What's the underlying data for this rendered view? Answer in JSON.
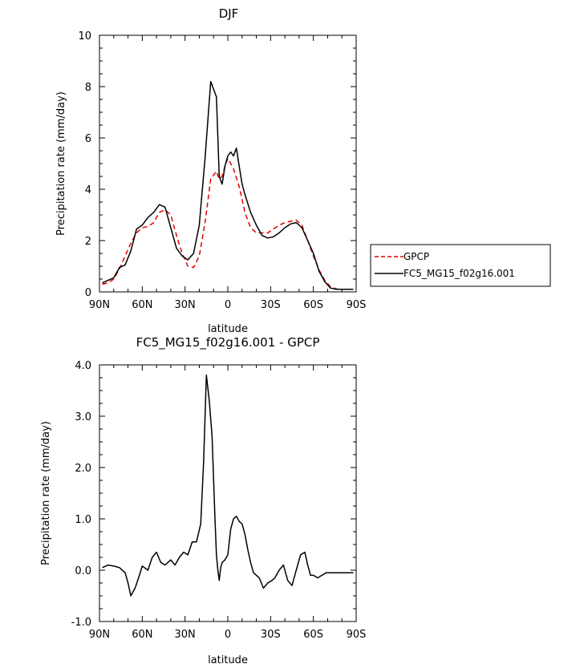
{
  "chart_data": [
    {
      "type": "line",
      "title": "DJF",
      "xlabel": "latitude",
      "ylabel": "Precipitation rate (mm/day)",
      "xlim": [
        90,
        -90
      ],
      "ylim": [
        0,
        10
      ],
      "x_ticks": [
        "90N",
        "60N",
        "30N",
        "0",
        "30S",
        "60S",
        "90S"
      ],
      "x_tick_values": [
        90,
        60,
        30,
        0,
        -30,
        -60,
        -90
      ],
      "y_ticks": [
        "0",
        "2",
        "4",
        "6",
        "8",
        "10"
      ],
      "y_tick_values": [
        0,
        2,
        4,
        6,
        8,
        10
      ],
      "legend": "right-outside",
      "series": [
        {
          "name": "GPCP",
          "style": "dashed",
          "color": "#e00000",
          "x": [
            88,
            84,
            80,
            76,
            72,
            68,
            64,
            60,
            56,
            52,
            48,
            44,
            40,
            36,
            32,
            28,
            24,
            20,
            16,
            12,
            8,
            6,
            4,
            2,
            0,
            -4,
            -8,
            -12,
            -16,
            -20,
            -24,
            -28,
            -32,
            -36,
            -40,
            -44,
            -48,
            -52,
            -56,
            -60,
            -64,
            -68,
            -72,
            -76,
            -80,
            -84,
            -88
          ],
          "y": [
            0.3,
            0.35,
            0.5,
            0.9,
            1.4,
            1.9,
            2.3,
            2.5,
            2.55,
            2.7,
            3.1,
            3.2,
            3.0,
            2.2,
            1.5,
            1.0,
            0.95,
            1.4,
            2.7,
            4.4,
            4.7,
            4.4,
            4.5,
            4.9,
            5.2,
            4.8,
            4.1,
            3.1,
            2.5,
            2.3,
            2.3,
            2.3,
            2.45,
            2.6,
            2.7,
            2.75,
            2.8,
            2.6,
            2.0,
            1.4,
            0.85,
            0.45,
            0.2,
            0.12,
            0.1,
            0.1,
            0.1
          ]
        },
        {
          "name": "FC5_MG15_f02g16.001",
          "style": "solid",
          "color": "#000000",
          "x": [
            88,
            84,
            80,
            76,
            72,
            68,
            64,
            60,
            56,
            52,
            48,
            44,
            40,
            36,
            32,
            28,
            24,
            20,
            16,
            12,
            8,
            6,
            4,
            2,
            0,
            -2,
            -4,
            -6,
            -8,
            -10,
            -12,
            -16,
            -20,
            -24,
            -28,
            -32,
            -36,
            -40,
            -44,
            -48,
            -52,
            -56,
            -60,
            -64,
            -68,
            -72,
            -76,
            -80,
            -84,
            -88
          ],
          "y": [
            0.35,
            0.45,
            0.55,
            0.95,
            1.05,
            1.6,
            2.45,
            2.6,
            2.9,
            3.1,
            3.4,
            3.3,
            2.5,
            1.7,
            1.4,
            1.25,
            1.5,
            2.6,
            5.2,
            8.2,
            7.6,
            4.5,
            4.2,
            4.9,
            5.3,
            5.45,
            5.3,
            5.6,
            4.9,
            4.2,
            3.8,
            3.1,
            2.6,
            2.2,
            2.1,
            2.15,
            2.3,
            2.5,
            2.65,
            2.7,
            2.5,
            2.0,
            1.5,
            0.8,
            0.4,
            0.15,
            0.1,
            0.1,
            0.1,
            0.1
          ]
        }
      ]
    },
    {
      "type": "line",
      "title": "FC5_MG15_f02g16.001 - GPCP",
      "xlabel": "latitude",
      "ylabel": "Precipitation rate (mm/day)",
      "xlim": [
        90,
        -90
      ],
      "ylim": [
        -1.0,
        4.0
      ],
      "x_ticks": [
        "90N",
        "60N",
        "30N",
        "0",
        "30S",
        "60S",
        "90S"
      ],
      "x_tick_values": [
        90,
        60,
        30,
        0,
        -30,
        -60,
        -90
      ],
      "y_ticks": [
        "-1.0",
        "0.0",
        "1.0",
        "2.0",
        "3.0",
        "4.0"
      ],
      "y_tick_values": [
        -1.0,
        0.0,
        1.0,
        2.0,
        3.0,
        4.0
      ],
      "series": [
        {
          "name": "",
          "style": "solid",
          "color": "#000000",
          "x": [
            88,
            84,
            80,
            76,
            72,
            70,
            68,
            65,
            62,
            60,
            56,
            53,
            50,
            47,
            44,
            40,
            37,
            34,
            31,
            28,
            25,
            22,
            19,
            17,
            15,
            13,
            11,
            9,
            8,
            7,
            6,
            5,
            4,
            2,
            0,
            -2,
            -4,
            -6,
            -8,
            -10,
            -12,
            -14,
            -16,
            -18,
            -20,
            -22,
            -25,
            -28,
            -31,
            -33,
            -36,
            -39,
            -42,
            -45,
            -48,
            -51,
            -54,
            -56,
            -58,
            -60,
            -63,
            -66,
            -69,
            -72,
            -75,
            -78,
            -81,
            -84,
            -88
          ],
          "y": [
            0.05,
            0.1,
            0.08,
            0.05,
            -0.05,
            -0.25,
            -0.5,
            -0.35,
            -0.1,
            0.08,
            0.0,
            0.25,
            0.35,
            0.15,
            0.1,
            0.2,
            0.1,
            0.25,
            0.35,
            0.3,
            0.55,
            0.55,
            0.9,
            2.1,
            3.8,
            3.3,
            2.6,
            1.0,
            0.3,
            0.0,
            -0.2,
            0.05,
            0.15,
            0.2,
            0.3,
            0.8,
            1.0,
            1.05,
            0.95,
            0.9,
            0.7,
            0.4,
            0.15,
            -0.05,
            -0.1,
            -0.15,
            -0.35,
            -0.25,
            -0.2,
            -0.15,
            0.0,
            0.1,
            -0.2,
            -0.3,
            0.0,
            0.3,
            0.35,
            0.1,
            -0.1,
            -0.1,
            -0.15,
            -0.1,
            -0.05,
            -0.05,
            -0.05,
            -0.05,
            -0.05,
            -0.05,
            -0.05
          ]
        }
      ]
    }
  ]
}
